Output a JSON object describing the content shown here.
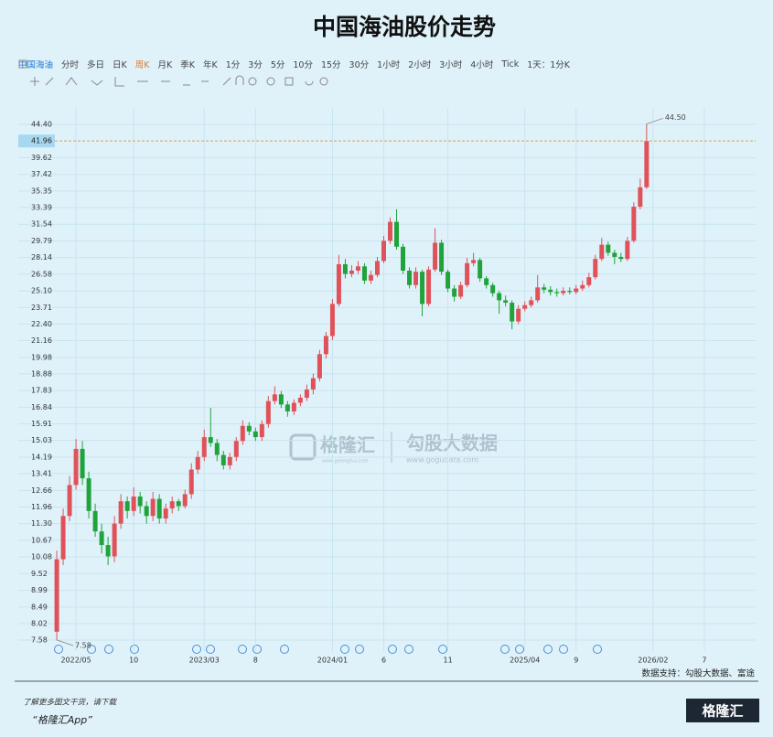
{
  "chart_data": {
    "type": "candlestick",
    "title": "中国海油股价走势",
    "up_color": "#e0525a",
    "down_color": "#21a33b",
    "grid": true,
    "log_scale": true,
    "ylim": [
      7.3,
      47.0
    ],
    "yticks": [
      7.58,
      8.02,
      8.49,
      8.99,
      9.52,
      10.08,
      10.67,
      {
        "value": 11.3,
        "label": "11.30"
      },
      11.96,
      12.66,
      13.41,
      14.19,
      15.03,
      15.91,
      16.84,
      17.83,
      18.88,
      19.98,
      21.16,
      {
        "value": 22.4,
        "label": "22.40"
      },
      23.71,
      {
        "value": 25.1,
        "label": "25.10"
      },
      26.58,
      28.14,
      29.79,
      31.54,
      33.39,
      35.35,
      37.42,
      39.62,
      {
        "value": 44.4,
        "label": "44.40"
      }
    ],
    "xlim": [
      -6,
      109
    ],
    "xticks": [
      {
        "value": 3,
        "label": "2022/05"
      },
      {
        "value": 12,
        "label": "10"
      },
      {
        "value": 23,
        "label": "2023/03"
      },
      {
        "value": 31,
        "label": "8"
      },
      {
        "value": 43,
        "label": "2024/01"
      },
      {
        "value": 51,
        "label": "6"
      },
      {
        "value": 61,
        "label": "11"
      },
      {
        "value": 73,
        "label": "2025/04"
      },
      {
        "value": 81,
        "label": "9"
      },
      {
        "value": 93,
        "label": "2026/02"
      },
      {
        "value": 101,
        "label": "7"
      }
    ],
    "price_line": 41.96,
    "max_marker": {
      "value": 44.5,
      "label": "44.50"
    },
    "min_marker": {
      "value": 7.58,
      "label": "7.58"
    },
    "candles": [
      [
        7.8,
        10.3,
        7.58,
        10.0
      ],
      [
        10.0,
        11.9,
        9.8,
        11.6
      ],
      [
        11.6,
        13.3,
        11.4,
        12.9
      ],
      [
        12.9,
        15.1,
        12.7,
        14.6
      ],
      [
        14.6,
        15.0,
        12.9,
        13.2
      ],
      [
        13.2,
        13.5,
        11.5,
        11.8
      ],
      [
        11.8,
        12.1,
        10.8,
        11.0
      ],
      [
        11.0,
        11.3,
        10.2,
        10.5
      ],
      [
        10.5,
        10.8,
        9.8,
        10.1
      ],
      [
        10.1,
        11.6,
        9.9,
        11.3
      ],
      [
        11.3,
        12.5,
        11.1,
        12.2
      ],
      [
        12.2,
        12.4,
        11.5,
        11.8
      ],
      [
        11.8,
        12.8,
        11.6,
        12.4
      ],
      [
        12.4,
        12.6,
        11.7,
        12.0
      ],
      [
        12.0,
        12.2,
        11.3,
        11.6
      ],
      [
        11.6,
        12.6,
        11.4,
        12.3
      ],
      [
        12.3,
        12.5,
        11.3,
        11.5
      ],
      [
        11.5,
        12.1,
        11.3,
        11.9
      ],
      [
        11.9,
        12.4,
        11.7,
        12.2
      ],
      [
        12.2,
        12.3,
        11.8,
        12.0
      ],
      [
        12.0,
        12.7,
        11.9,
        12.5
      ],
      [
        12.5,
        13.9,
        12.3,
        13.6
      ],
      [
        13.6,
        14.5,
        13.4,
        14.2
      ],
      [
        14.2,
        15.6,
        14.0,
        15.2
      ],
      [
        15.2,
        16.8,
        14.7,
        14.9
      ],
      [
        14.9,
        15.1,
        14.0,
        14.3
      ],
      [
        14.3,
        14.5,
        13.6,
        13.8
      ],
      [
        13.8,
        14.4,
        13.6,
        14.2
      ],
      [
        14.2,
        15.2,
        14.0,
        15.0
      ],
      [
        15.0,
        16.1,
        14.8,
        15.8
      ],
      [
        15.8,
        16.0,
        15.3,
        15.5
      ],
      [
        15.5,
        15.7,
        15.0,
        15.2
      ],
      [
        15.2,
        16.1,
        15.0,
        15.9
      ],
      [
        15.9,
        17.5,
        15.7,
        17.2
      ],
      [
        17.2,
        18.1,
        17.0,
        17.6
      ],
      [
        17.6,
        17.8,
        16.8,
        17.0
      ],
      [
        17.0,
        17.2,
        16.3,
        16.6
      ],
      [
        16.6,
        17.3,
        16.4,
        17.1
      ],
      [
        17.1,
        17.6,
        16.9,
        17.4
      ],
      [
        17.4,
        18.2,
        17.2,
        17.9
      ],
      [
        17.9,
        18.9,
        17.6,
        18.6
      ],
      [
        18.6,
        20.5,
        18.4,
        20.2
      ],
      [
        20.2,
        21.8,
        19.9,
        21.5
      ],
      [
        21.5,
        24.4,
        21.2,
        24.0
      ],
      [
        24.0,
        28.4,
        23.8,
        27.5
      ],
      [
        27.5,
        28.0,
        26.2,
        26.6
      ],
      [
        26.6,
        27.4,
        26.3,
        26.9
      ],
      [
        26.9,
        27.8,
        26.6,
        27.3
      ],
      [
        27.3,
        27.6,
        25.7,
        26.0
      ],
      [
        26.0,
        26.9,
        25.7,
        26.5
      ],
      [
        26.5,
        28.2,
        26.3,
        27.8
      ],
      [
        27.8,
        30.3,
        27.6,
        29.8
      ],
      [
        29.8,
        32.3,
        29.5,
        31.8
      ],
      [
        31.8,
        33.2,
        28.9,
        29.2
      ],
      [
        29.2,
        29.5,
        26.6,
        26.9
      ],
      [
        26.9,
        27.2,
        25.3,
        25.6
      ],
      [
        25.6,
        27.2,
        25.3,
        26.8
      ],
      [
        26.8,
        27.0,
        23.0,
        24.0
      ],
      [
        24.0,
        27.3,
        23.8,
        27.0
      ],
      [
        27.0,
        31.1,
        26.8,
        29.6
      ],
      [
        29.6,
        29.9,
        26.5,
        26.8
      ],
      [
        26.8,
        27.0,
        25.0,
        25.3
      ],
      [
        25.3,
        25.6,
        24.2,
        24.6
      ],
      [
        24.6,
        25.9,
        24.4,
        25.6
      ],
      [
        25.6,
        28.1,
        25.4,
        27.6
      ],
      [
        27.6,
        28.6,
        27.3,
        27.9
      ],
      [
        27.9,
        28.1,
        25.9,
        26.2
      ],
      [
        26.2,
        26.4,
        25.3,
        25.6
      ],
      [
        25.6,
        25.8,
        24.6,
        24.9
      ],
      [
        24.9,
        25.1,
        23.2,
        24.3
      ],
      [
        24.3,
        24.7,
        23.8,
        24.1
      ],
      [
        24.1,
        24.3,
        22.0,
        22.6
      ],
      [
        22.6,
        23.9,
        22.4,
        23.6
      ],
      [
        23.6,
        24.2,
        23.4,
        23.9
      ],
      [
        23.9,
        24.6,
        23.7,
        24.3
      ],
      [
        24.3,
        26.5,
        24.1,
        25.4
      ],
      [
        25.4,
        25.7,
        24.9,
        25.2
      ],
      [
        25.2,
        25.5,
        24.7,
        25.0
      ],
      [
        25.0,
        25.3,
        24.6,
        24.9
      ],
      [
        24.9,
        25.4,
        24.7,
        25.1
      ],
      [
        25.1,
        25.4,
        24.8,
        25.0
      ],
      [
        25.0,
        25.6,
        24.8,
        25.3
      ],
      [
        25.3,
        26.0,
        25.1,
        25.6
      ],
      [
        25.6,
        26.7,
        25.4,
        26.3
      ],
      [
        26.3,
        28.4,
        26.1,
        28.0
      ],
      [
        28.0,
        30.1,
        27.8,
        29.4
      ],
      [
        29.4,
        29.7,
        28.3,
        28.6
      ],
      [
        28.6,
        28.9,
        27.5,
        28.2
      ],
      [
        28.2,
        28.6,
        27.7,
        28.0
      ],
      [
        28.0,
        30.2,
        27.8,
        29.8
      ],
      [
        29.8,
        34.0,
        29.6,
        33.5
      ],
      [
        33.5,
        36.9,
        33.2,
        35.8
      ],
      [
        35.8,
        44.5,
        35.6,
        41.96
      ]
    ]
  },
  "toolbar": {
    "items": [
      "中国海油",
      "分时",
      "多日",
      "日K",
      "周K",
      "月K",
      "季K",
      "年K",
      "1分",
      "3分",
      "5分",
      "10分",
      "15分",
      "30分",
      "1小时",
      "2小时",
      "3小时",
      "4小时",
      "Tick",
      "1天：1分K"
    ]
  },
  "watermark": {
    "brand": "格隆汇",
    "brand_url": "www.gelonghui.com",
    "data": "勾股大数据",
    "data_url": "www.gogudata.com"
  },
  "footer": {
    "source": "数据支持：勾股大数据、富途",
    "promo": "了解更多图文干货，请下载",
    "app": "“格隆汇App”",
    "logo": "格隆汇"
  }
}
